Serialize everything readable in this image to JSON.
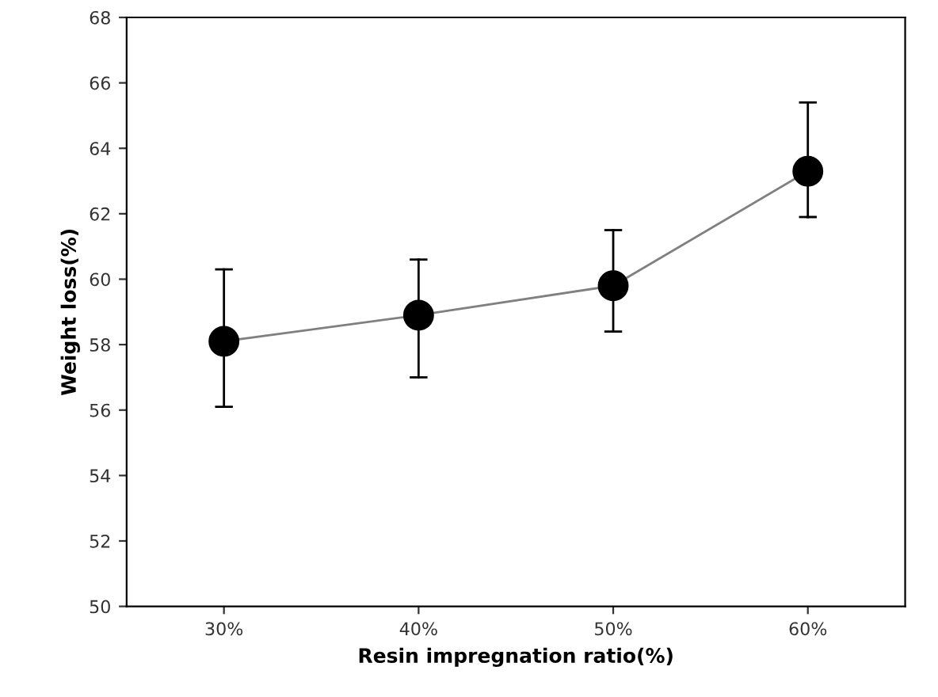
{
  "chart_data": {
    "type": "line",
    "xlabel": "Resin impregnation ratio(%)",
    "ylabel": "Weight loss(%)",
    "categories": [
      "30%",
      "40%",
      "50%",
      "60%"
    ],
    "color": "#000000",
    "values": [
      58.1,
      58.9,
      59.8,
      63.3
    ],
    "errors": [
      [
        56.1,
        60.3
      ],
      [
        57.0,
        60.6
      ],
      [
        58.4,
        61.5
      ],
      [
        61.9,
        65.4
      ]
    ],
    "ylim": [
      50,
      68
    ],
    "yticks": [
      50,
      52,
      54,
      56,
      58,
      60,
      62,
      64,
      66,
      68
    ],
    "grid": false,
    "legend": false,
    "marker": "circle",
    "line_style": "solid"
  }
}
